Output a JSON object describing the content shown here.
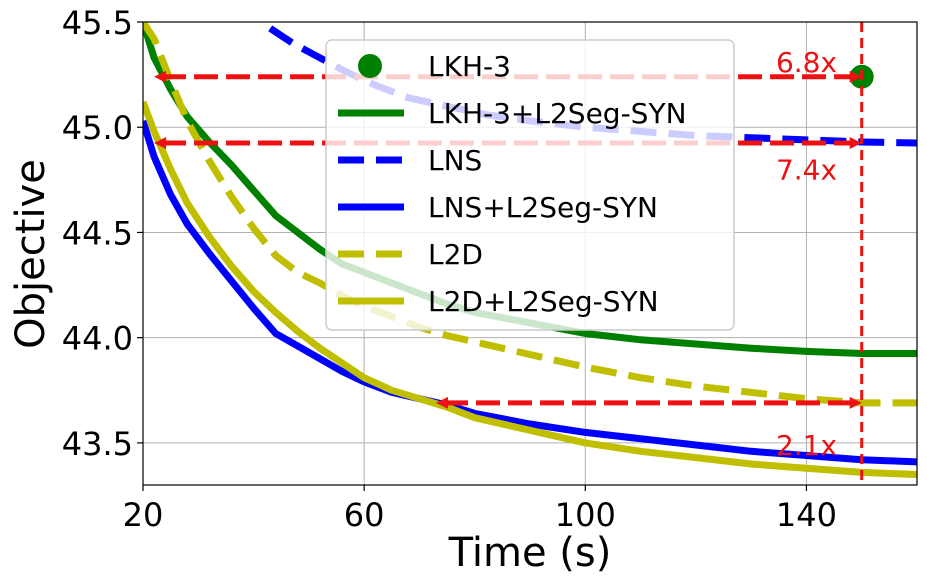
{
  "chart_data": {
    "type": "line",
    "title": "",
    "xlabel": "Time (s)",
    "ylabel": "Objective",
    "xlim": [
      20,
      160
    ],
    "ylim": [
      43.3,
      45.5
    ],
    "xticks": [
      20,
      60,
      100,
      140
    ],
    "yticks": [
      43.5,
      44.0,
      44.5,
      45.0,
      45.5
    ],
    "xtick_labels": [
      "20",
      "60",
      "100",
      "140"
    ],
    "ytick_labels": [
      "43.5",
      "44.0",
      "44.5",
      "45.0",
      "45.5"
    ],
    "grid": true,
    "legend_position": "upper-center",
    "series": [
      {
        "name": "LKH-3",
        "style": "marker",
        "color": "#008000",
        "x": [
          150
        ],
        "y": [
          45.24
        ]
      },
      {
        "name": "LKH-3+L2Seg-SYN",
        "style": "solid",
        "color": "#008000",
        "x": [
          20,
          22,
          25,
          28,
          32,
          36,
          40,
          44,
          48,
          52,
          56,
          60,
          65,
          70,
          75,
          80,
          90,
          100,
          110,
          120,
          130,
          140,
          150,
          160
        ],
        "y": [
          45.5,
          45.33,
          45.18,
          45.05,
          44.93,
          44.82,
          44.7,
          44.58,
          44.5,
          44.42,
          44.35,
          44.31,
          44.26,
          44.21,
          44.16,
          44.12,
          44.07,
          44.02,
          43.99,
          43.97,
          43.95,
          43.935,
          43.925,
          43.925
        ]
      },
      {
        "name": "LNS",
        "style": "dashed",
        "color": "#0000ff",
        "x": [
          43,
          47,
          52,
          57,
          62,
          68,
          75,
          82,
          90,
          100,
          110,
          120,
          130,
          140,
          150,
          160
        ],
        "y": [
          45.47,
          45.4,
          45.33,
          45.26,
          45.2,
          45.14,
          45.1,
          45.06,
          45.03,
          45.0,
          44.98,
          44.96,
          44.95,
          44.94,
          44.93,
          44.925
        ]
      },
      {
        "name": "LNS+L2Seg-SYN",
        "style": "solid",
        "color": "#0000ff",
        "x": [
          20,
          22,
          25,
          28,
          32,
          36,
          40,
          44,
          48,
          52,
          56,
          60,
          65,
          70,
          75,
          80,
          90,
          100,
          110,
          120,
          130,
          140,
          150,
          160
        ],
        "y": [
          45.03,
          44.86,
          44.68,
          44.54,
          44.4,
          44.27,
          44.14,
          44.02,
          43.96,
          43.9,
          43.84,
          43.79,
          43.74,
          43.71,
          43.68,
          43.64,
          43.59,
          43.55,
          43.52,
          43.49,
          43.46,
          43.44,
          43.42,
          43.41
        ]
      },
      {
        "name": "L2D",
        "style": "dashed",
        "color": "#bfbf00",
        "x": [
          20,
          22,
          25,
          28,
          32,
          36,
          40,
          44,
          48,
          52,
          56,
          60,
          65,
          70,
          75,
          80,
          90,
          100,
          110,
          120,
          130,
          140,
          150,
          160
        ],
        "y": [
          45.5,
          45.42,
          45.22,
          45.03,
          44.84,
          44.67,
          44.52,
          44.39,
          44.31,
          44.26,
          44.2,
          44.15,
          44.1,
          44.05,
          44.01,
          43.98,
          43.92,
          43.86,
          43.81,
          43.77,
          43.74,
          43.71,
          43.69,
          43.69
        ]
      },
      {
        "name": "L2D+L2Seg-SYN",
        "style": "solid",
        "color": "#bfbf00",
        "x": [
          20,
          22,
          25,
          28,
          32,
          36,
          40,
          44,
          48,
          52,
          56,
          60,
          65,
          70,
          75,
          80,
          90,
          100,
          110,
          120,
          130,
          140,
          150,
          160
        ],
        "y": [
          45.12,
          44.98,
          44.8,
          44.64,
          44.48,
          44.34,
          44.22,
          44.12,
          44.03,
          43.95,
          43.88,
          43.81,
          43.75,
          43.71,
          43.67,
          43.62,
          43.56,
          43.5,
          43.46,
          43.43,
          43.4,
          43.38,
          43.36,
          43.35
        ]
      }
    ],
    "vline": {
      "x": 150,
      "color": "#ee1111"
    },
    "annotations": [
      {
        "label": "6.8x",
        "from_x": 22,
        "to_x": 150,
        "y": 45.24,
        "text_x": 145,
        "text_y": 45.31,
        "color": "#ee1111"
      },
      {
        "label": "7.4x",
        "from_x": 22,
        "to_x": 150,
        "y": 44.925,
        "text_x": 145,
        "text_y": 44.8,
        "color": "#ee1111"
      },
      {
        "label": "2.1x",
        "from_x": 73,
        "to_x": 150,
        "y": 43.69,
        "text_x": 145,
        "text_y": 43.49,
        "color": "#ee1111"
      }
    ]
  }
}
